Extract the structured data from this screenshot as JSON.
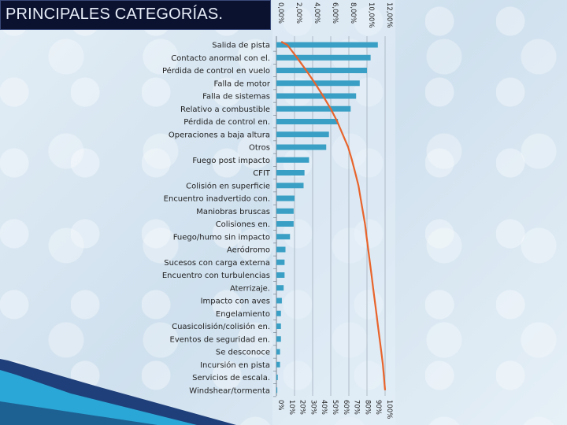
{
  "slide": {
    "title": "PRINCIPALES CATEGORÍAS.",
    "colors": {
      "bar": "#3a9fc4",
      "line": "#e8642c",
      "title_bg": "#0b1230",
      "decor_dark": "#1f3f7a",
      "decor_light": "#2aa7d6"
    }
  },
  "chart_data": {
    "type": "bar",
    "orientation": "horizontal",
    "categories": [
      "Salida de pista",
      "Contacto anormal con el.",
      "Pérdida de control en vuelo",
      "Falla de motor",
      "Falla de sistemas",
      "Relativo a combustible",
      "Pérdida de control en.",
      "Operaciones a baja altura",
      "Otros",
      "Fuego post impacto",
      "CFIT",
      "Colisión en superficie",
      "Encuentro inadvertido con.",
      "Maniobras bruscas",
      "Colisiones en.",
      "Fuego/humo sin impacto",
      "Aeródromo",
      "Sucesos con carga externa",
      "Encuentro con turbulencias",
      "Aterrizaje.",
      "Impacto con aves",
      "Engelamiento",
      "Cuasicolisión/colisión en.",
      "Eventos de seguridad en.",
      "Se desconoce",
      "Incursión en pista",
      "Servicios de escala.",
      "Windshear/tormenta"
    ],
    "series": [
      {
        "type": "bar",
        "axis": "top",
        "values": [
          11.2,
          10.4,
          10.0,
          9.2,
          8.8,
          8.2,
          6.8,
          5.8,
          5.5,
          3.6,
          3.1,
          3.0,
          2.0,
          1.9,
          1.9,
          1.5,
          1.0,
          0.9,
          0.9,
          0.8,
          0.6,
          0.5,
          0.5,
          0.5,
          0.4,
          0.4,
          0.15,
          0.1
        ]
      },
      {
        "type": "line",
        "axis": "bottom",
        "cumulative": true,
        "values": [
          10.0,
          19.0,
          27.5,
          35.5,
          43.0,
          50.0,
          56.0,
          61.0,
          66.0,
          69.5,
          72.5,
          75.5,
          77.5,
          79.5,
          81.5,
          83.0,
          84.5,
          86.0,
          87.5,
          89.0,
          90.5,
          92.0,
          93.5,
          95.0,
          96.5,
          98.0,
          99.0,
          100.0
        ]
      }
    ],
    "top_axis": {
      "ticks": [
        "0,00%",
        "2,00%",
        "4,00%",
        "6,00%",
        "8,00%",
        "10,00%",
        "12,00%"
      ],
      "range": [
        0,
        12
      ]
    },
    "bottom_axis": {
      "ticks": [
        "0%",
        "10%",
        "20%",
        "30%",
        "40%",
        "50%",
        "60%",
        "70%",
        "80%",
        "90%",
        "100%"
      ],
      "range": [
        0,
        100
      ]
    },
    "grid": true
  }
}
